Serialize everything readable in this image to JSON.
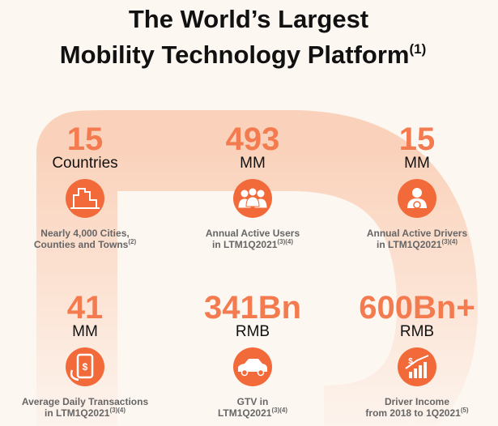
{
  "header": {
    "title_lines": [
      "The World’s Largest",
      "Mobility Technology Platform"
    ],
    "title_note": "(1)"
  },
  "stats": [
    {
      "value": "15",
      "unit": "Countries",
      "caption": [
        "Nearly 4,000 Cities,",
        "Counties and Towns"
      ],
      "note": "(2)",
      "icon": "city"
    },
    {
      "value": "493",
      "unit": "MM",
      "caption": [
        "Annual Active Users",
        "in LTM1Q2021"
      ],
      "note": "(3)(4)",
      "icon": "users"
    },
    {
      "value": "15",
      "unit": "MM",
      "caption": [
        "Annual Active Drivers",
        "in LTM1Q2021"
      ],
      "note": "(3)(4)",
      "icon": "driver"
    },
    {
      "value": "41",
      "unit": "MM",
      "caption": [
        "Average Daily Transactions",
        "in  LTM1Q2021"
      ],
      "note": "(3)(4)",
      "icon": "phone"
    },
    {
      "value": "341Bn",
      "unit": "RMB",
      "caption": [
        "GTV in",
        "LTM1Q2021"
      ],
      "note": "(3)(4)",
      "icon": "car"
    },
    {
      "value": "600Bn+",
      "unit": "RMB",
      "caption": [
        "Driver Income",
        "from 2018 to 1Q2021"
      ],
      "note": "(5)",
      "icon": "income"
    }
  ]
}
